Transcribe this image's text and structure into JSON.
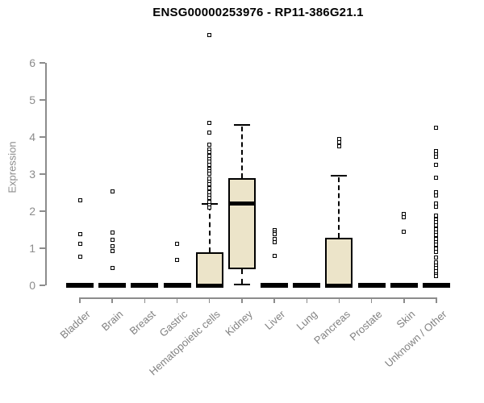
{
  "chart_data": {
    "type": "boxplot",
    "title": "ENSG00000253976 - RP11-386G21.1",
    "ylabel": "Expression",
    "xlabel": "",
    "ylim": [
      0,
      6
    ],
    "yticks": [
      0,
      1,
      2,
      3,
      4,
      5,
      6
    ],
    "grid": false,
    "legend_position": "none",
    "axis_color": "#8c8c8c",
    "label_color": "#828282",
    "box_fill": "#ece4c9",
    "box_border": "#000000",
    "categories": [
      "Bladder",
      "Brain",
      "Breast",
      "Gastric",
      "Hematopoietic cells",
      "Kidney",
      "Liver",
      "Lung",
      "Pancreas",
      "Prostate",
      "Skin",
      "Unknown / Other"
    ],
    "series": [
      {
        "name": "Bladder",
        "whisker_low": 0,
        "q1": 0,
        "median": 0,
        "q3": 0,
        "whisker_high": 0,
        "outliers": [
          2.3,
          1.39,
          1.13,
          0.78
        ]
      },
      {
        "name": "Brain",
        "whisker_low": 0,
        "q1": 0,
        "median": 0,
        "q3": 0,
        "whisker_high": 0,
        "outliers": [
          2.54,
          1.43,
          1.22,
          1.05,
          0.92,
          0.46
        ]
      },
      {
        "name": "Breast",
        "whisker_low": 0,
        "q1": 0,
        "median": 0,
        "q3": 0,
        "whisker_high": 0,
        "outliers": []
      },
      {
        "name": "Gastric",
        "whisker_low": 0,
        "q1": 0,
        "median": 0,
        "q3": 0,
        "whisker_high": 0,
        "outliers": [
          1.13,
          0.68
        ]
      },
      {
        "name": "Hematopoietic cells",
        "whisker_low": 0,
        "q1": 0,
        "median": 0,
        "q3": 0.89,
        "whisker_high": 2.2,
        "outliers": [
          6.76,
          4.39,
          4.11,
          3.8,
          3.67,
          3.59,
          3.5,
          3.41,
          3.33,
          3.24,
          3.15,
          3.07,
          3.02,
          2.89,
          2.8,
          2.72,
          2.63,
          2.52,
          2.43,
          2.35,
          2.26,
          2.17,
          2.09
        ]
      },
      {
        "name": "Kidney",
        "whisker_low": 0.02,
        "q1": 0.43,
        "median": 2.2,
        "q3": 2.89,
        "whisker_high": 4.33,
        "outliers": []
      },
      {
        "name": "Liver",
        "whisker_low": 0,
        "q1": 0,
        "median": 0,
        "q3": 0,
        "whisker_high": 0,
        "outliers": [
          1.5,
          1.43,
          1.37,
          1.25,
          1.17,
          0.8
        ]
      },
      {
        "name": "Lung",
        "whisker_low": 0,
        "q1": 0,
        "median": 0,
        "q3": 0,
        "whisker_high": 0,
        "outliers": []
      },
      {
        "name": "Pancreas",
        "whisker_low": 0,
        "q1": 0,
        "median": 0,
        "q3": 1.28,
        "whisker_high": 2.95,
        "outliers": [
          3.95,
          3.86,
          3.76
        ]
      },
      {
        "name": "Prostate",
        "whisker_low": 0,
        "q1": 0,
        "median": 0,
        "q3": 0,
        "whisker_high": 0,
        "outliers": []
      },
      {
        "name": "Skin",
        "whisker_low": 0,
        "q1": 0,
        "median": 0,
        "q3": 0,
        "whisker_high": 0,
        "outliers": [
          1.93,
          1.83,
          1.45
        ]
      },
      {
        "name": "Unknown / Other",
        "whisker_low": 0,
        "q1": 0,
        "median": 0,
        "q3": 0,
        "whisker_high": 0,
        "outliers": [
          4.26,
          3.63,
          3.54,
          3.46,
          3.24,
          2.91,
          2.52,
          2.43,
          2.2,
          2.13,
          1.87,
          1.78,
          1.7,
          1.61,
          1.52,
          1.43,
          1.35,
          1.26,
          1.17,
          1.09,
          1.0,
          0.91,
          0.74,
          0.63,
          0.54,
          0.46,
          0.37,
          0.3,
          0.24
        ]
      }
    ]
  }
}
